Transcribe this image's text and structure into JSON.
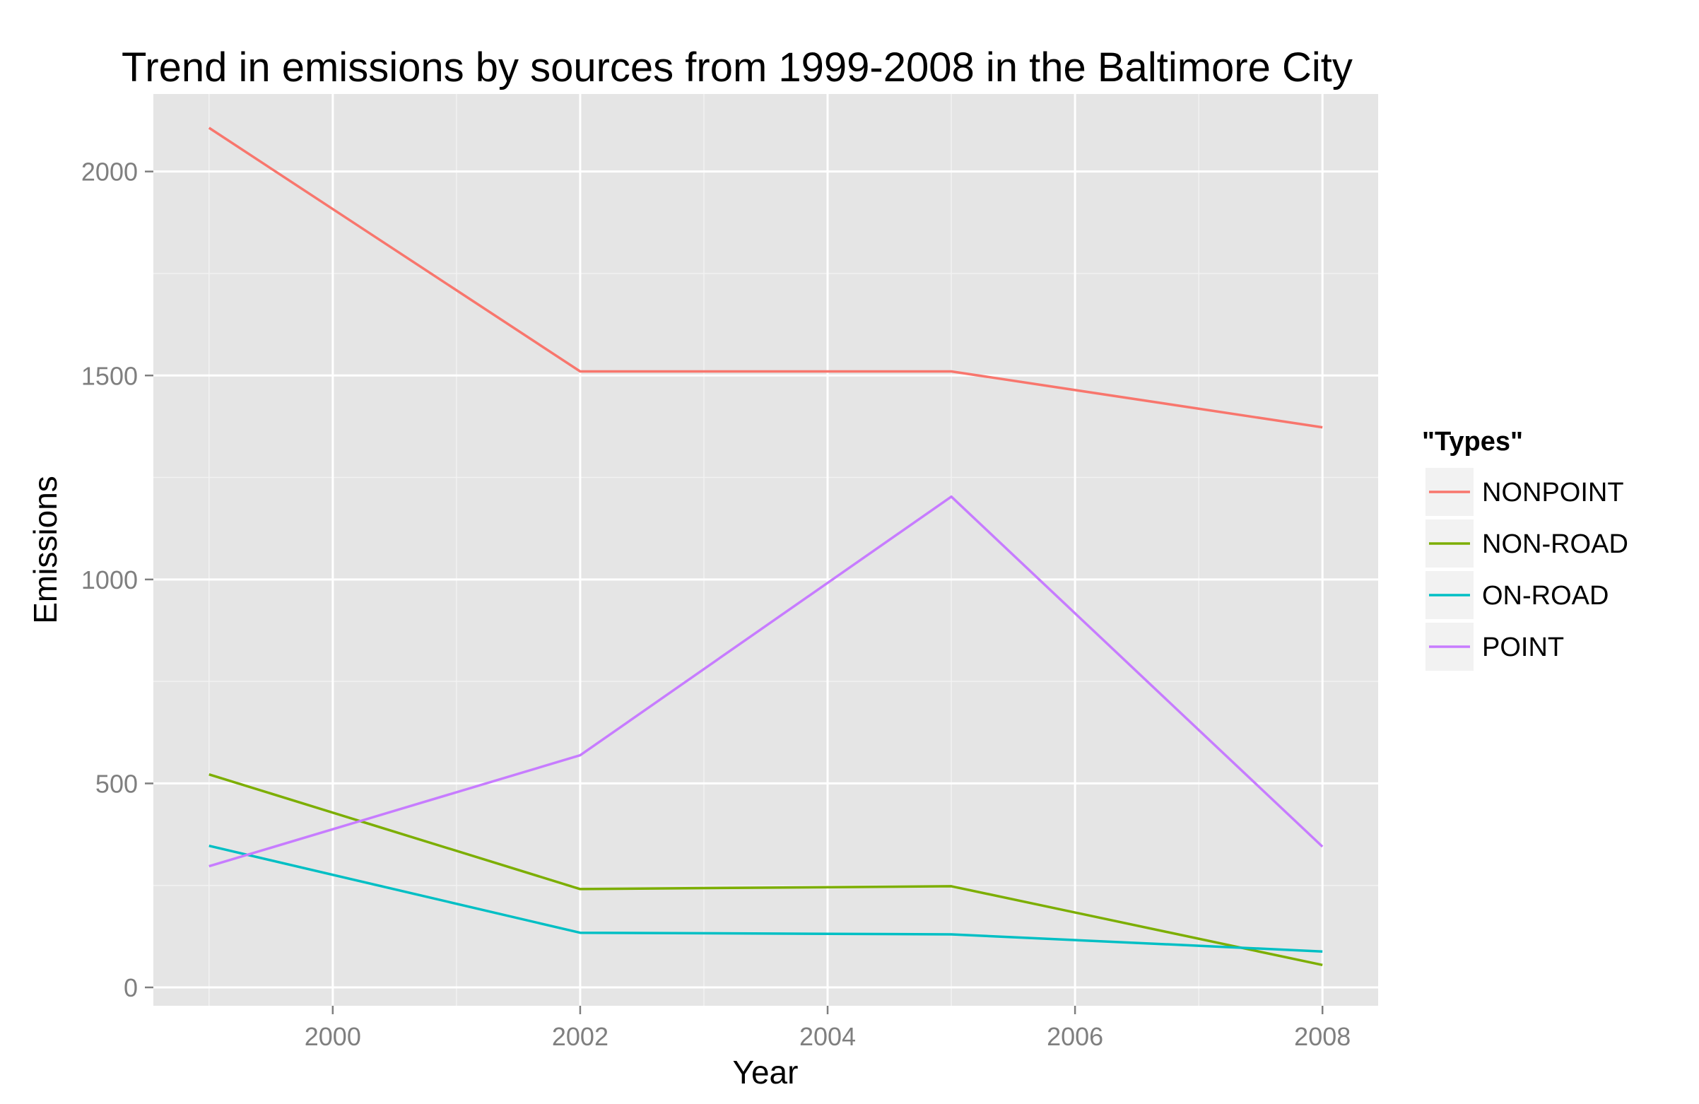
{
  "chart_data": {
    "type": "line",
    "title": "Trend in emissions by sources from 1999-2008 in the Baltimore City",
    "xlabel": "Year",
    "ylabel": "Emissions",
    "x": [
      1999,
      2002,
      2005,
      2008
    ],
    "xlim": [
      1998.55,
      2008.45
    ],
    "ylim": [
      -45,
      2190
    ],
    "x_ticks": [
      2000,
      2002,
      2004,
      2006,
      2008
    ],
    "x_tick_labels": [
      "2000",
      "2002",
      "2004",
      "2006",
      "2008"
    ],
    "x_minor_ticks": [
      1999,
      2001,
      2003,
      2005,
      2007
    ],
    "y_ticks": [
      0,
      500,
      1000,
      1500,
      2000
    ],
    "y_tick_labels": [
      "0",
      "500",
      "1000",
      "1500",
      "2000"
    ],
    "y_minor_ticks": [
      250,
      750,
      1250,
      1750
    ],
    "grid": true,
    "legend": {
      "title": "\"Types\"",
      "position": "right"
    },
    "series": [
      {
        "name": "NONPOINT",
        "color": "#F8766D",
        "values": [
          2107,
          1510,
          1510,
          1373
        ]
      },
      {
        "name": "NON-ROAD",
        "color": "#7CAE00",
        "values": [
          522,
          241,
          248,
          55
        ]
      },
      {
        "name": "ON-ROAD",
        "color": "#00BFC4",
        "values": [
          347,
          134,
          130,
          88
        ]
      },
      {
        "name": "POINT",
        "color": "#C77CFF",
        "values": [
          297,
          569,
          1203,
          345
        ]
      }
    ],
    "colors": {
      "panel_background": "#E5E5E5",
      "grid_major": "#FFFFFF",
      "grid_minor": "#F2F2F2",
      "tick_label": "#7F7F7F",
      "legend_key_background": "#F2F2F2"
    }
  }
}
